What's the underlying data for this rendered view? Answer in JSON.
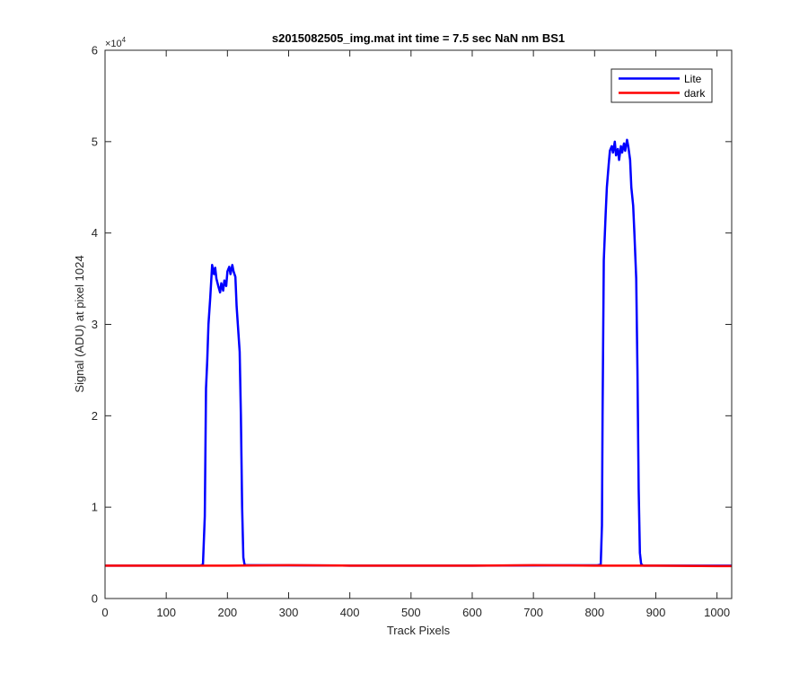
{
  "chart_data": {
    "type": "line",
    "title": "s2015082505_img.mat int time = 7.5 sec  NaN nm BS1",
    "xlabel": "Track Pixels",
    "ylabel": "Signal (ADU) at pixel 1024",
    "xlim": [
      0,
      1024
    ],
    "ylim": [
      0,
      60000
    ],
    "xticks": [
      0,
      100,
      200,
      300,
      400,
      500,
      600,
      700,
      800,
      900,
      1000
    ],
    "yticks": [
      0,
      10000,
      20000,
      30000,
      40000,
      50000,
      60000
    ],
    "ytick_labels": [
      "0",
      "1",
      "2",
      "3",
      "4",
      "5",
      "6"
    ],
    "y_exponent_base": "×10",
    "y_exponent_power": "4",
    "grid": false,
    "legend_position": "top-right",
    "series": [
      {
        "name": "Lite",
        "color": "#0000ff",
        "x": [
          0,
          155,
          160,
          163,
          165,
          167,
          169,
          172,
          175,
          178,
          180,
          182,
          185,
          188,
          190,
          193,
          195,
          198,
          200,
          203,
          205,
          208,
          210,
          213,
          215,
          217,
          220,
          222,
          224,
          226,
          228,
          230,
          235,
          400,
          600,
          805,
          810,
          812,
          813,
          815,
          818,
          820,
          823,
          825,
          828,
          830,
          833,
          835,
          838,
          840,
          843,
          845,
          848,
          850,
          853,
          855,
          858,
          860,
          863,
          865,
          868,
          870,
          872,
          874,
          876,
          878,
          880,
          1024
        ],
        "y": [
          3600,
          3600,
          3700,
          9000,
          23000,
          26000,
          30000,
          33000,
          36500,
          35500,
          36200,
          35000,
          34200,
          33500,
          34500,
          33700,
          34800,
          34200,
          35800,
          36300,
          35500,
          36500,
          35800,
          35200,
          32000,
          30000,
          27000,
          20000,
          10000,
          4500,
          3700,
          3650,
          3650,
          3600,
          3600,
          3650,
          3700,
          8000,
          20000,
          37000,
          42000,
          45000,
          47500,
          49000,
          49500,
          48800,
          50000,
          48500,
          49200,
          48000,
          49500,
          48800,
          49800,
          49000,
          50200,
          49500,
          48000,
          45000,
          43000,
          40000,
          35000,
          25000,
          12000,
          5000,
          3800,
          3650,
          3600,
          3600
        ]
      },
      {
        "name": "dark",
        "color": "#ff0000",
        "x": [
          0,
          100,
          200,
          300,
          400,
          500,
          600,
          700,
          800,
          900,
          1000,
          1024
        ],
        "y": [
          3600,
          3600,
          3600,
          3650,
          3600,
          3600,
          3600,
          3650,
          3600,
          3600,
          3550,
          3550
        ]
      }
    ]
  }
}
